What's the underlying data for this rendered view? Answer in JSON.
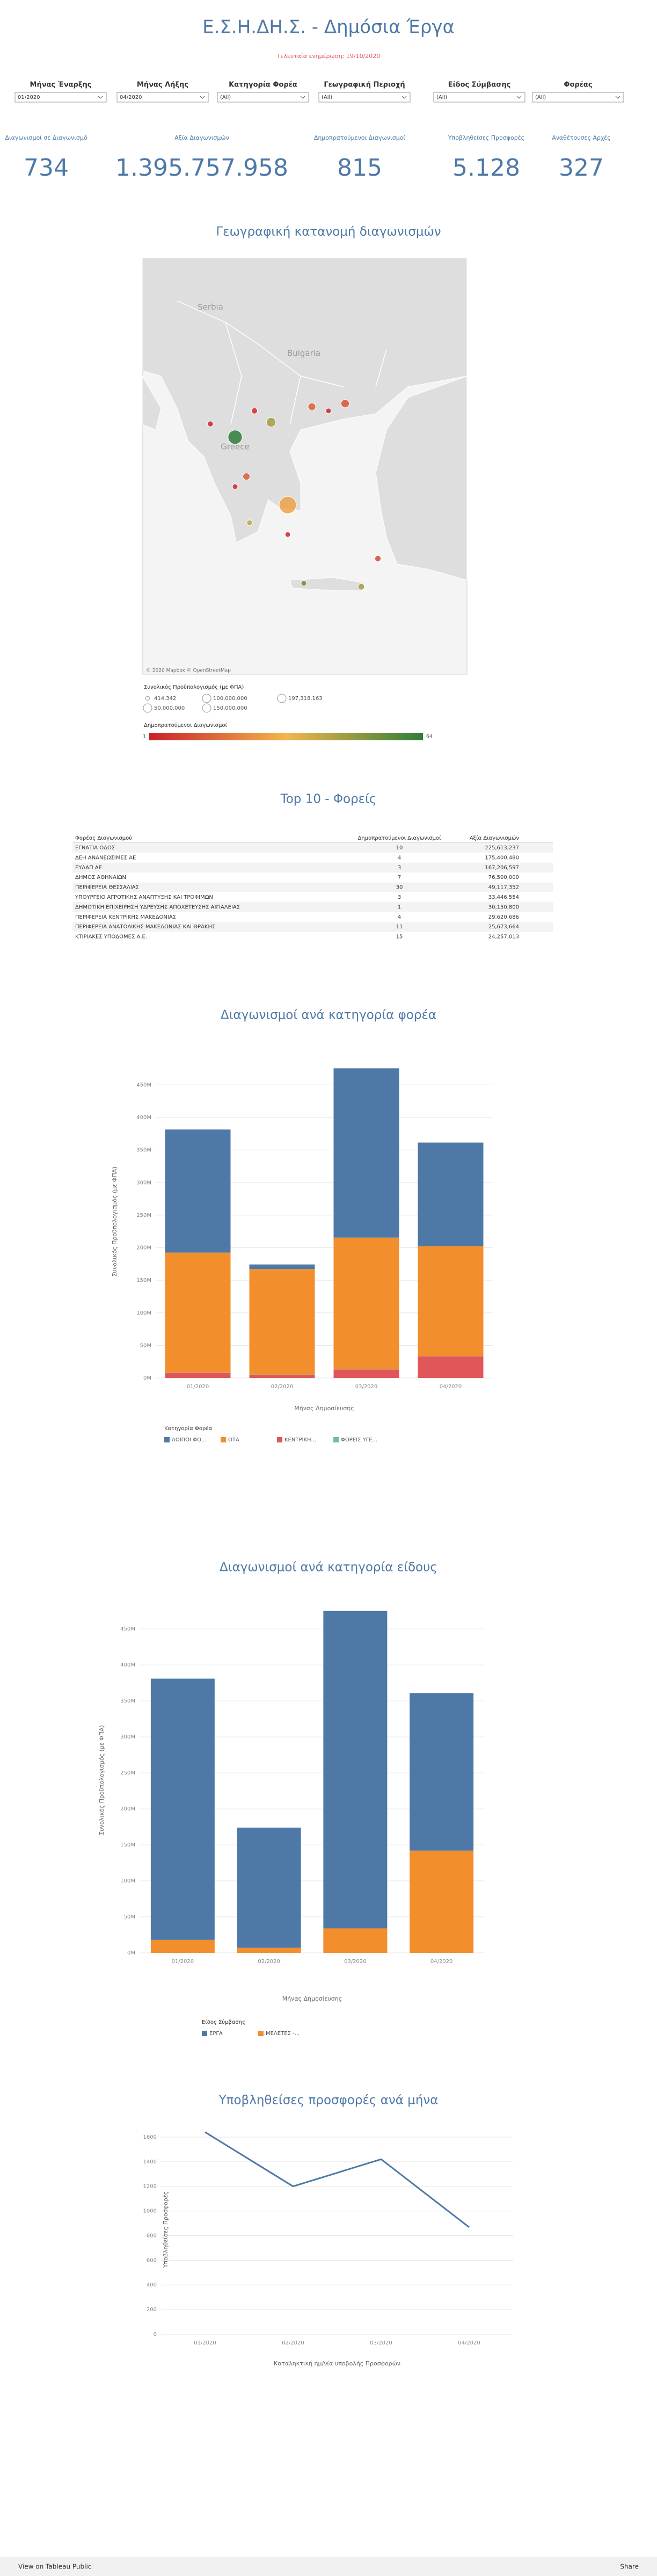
{
  "header": {
    "title": "Ε.Σ.Η.ΔΗ.Σ. - Δημόσια Έργα",
    "subtitle": "Τελευταία ενημέρωση: 19/10/2020"
  },
  "filters": [
    {
      "label": "Μήνας Έναρξης",
      "value": "01/2020"
    },
    {
      "label": "Μήνας Λήξης",
      "value": "04/2020"
    },
    {
      "label": "Κατηγορία Φορέα",
      "value": "(All)"
    },
    {
      "label": "Γεωγραφική Περιοχή",
      "value": "(All)"
    },
    {
      "label": "Είδος Σύμβασης",
      "value": "(All)"
    },
    {
      "label": "Φορέας",
      "value": "(All)"
    }
  ],
  "kpis": [
    {
      "label": "Διαγωνισμοί σε Διαγωνισμό",
      "value": "734"
    },
    {
      "label": "Αξία Διαγωνισμών",
      "value": "1.395.757.958"
    },
    {
      "label": "Δημοπρατούμενοι Διαγωνισμοί",
      "value": "815"
    },
    {
      "label": "Υποβληθείσες Προσφορές",
      "value": "5.128"
    },
    {
      "label": "Αναθέτουσες Αρχές",
      "value": "327"
    }
  ],
  "table": {
    "title": "Top 10 - Φορείς",
    "columns": [
      "Φορέας Διαγωνισμού",
      "Δημοπρατούμενοι Διαγωνισμοί",
      "Αξία Διαγωνισμών"
    ],
    "rows": [
      [
        "ΕΓΝΑΤΙΑ ΟΔΟΣ",
        "10",
        "225,613,237"
      ],
      [
        "ΔΕΗ ΑΝΑΝΕΩΣΙΜΕΣ ΑΕ",
        "4",
        "175,400,480"
      ],
      [
        "ΕΥΔΑΠ ΑΕ",
        "3",
        "167,206,597"
      ],
      [
        "ΔΗΜΟΣ ΑΘΗΝΑΙΩΝ",
        "7",
        "76,500,000"
      ],
      [
        "ΠΕΡΙΦΕΡΕΙΑ ΘΕΣΣΑΛΙΑΣ",
        "30",
        "49,117,352"
      ],
      [
        "ΥΠΟΥΡΓΕΙΟ ΑΓΡΟΤΙΚΗΣ ΑΝΑΠΤΥΞΗΣ ΚΑΙ ΤΡΟΦΙΜΩΝ",
        "3",
        "33,446,554"
      ],
      [
        "ΔΗΜΟΤΙΚΗ ΕΠΙΧΕΙΡΗΣΗ ΥΔΡΕΥΣΗΣ ΑΠΟΧΕΤΕΥΣΗΣ ΑΙΓΙΑΛΕΙΑΣ",
        "1",
        "30,150,800"
      ],
      [
        "ΠΕΡΙΦΕΡΕΙΑ ΚΕΝΤΡΙΚΗΣ ΜΑΚΕΔΟΝΙΑΣ",
        "4",
        "29,620,686"
      ],
      [
        "ΠΕΡΙΦΕΡΕΙΑ ΑΝΑΤΟΛΙΚΗΣ ΜΑΚΕΔΟΝΙΑΣ ΚΑΙ ΘΡΑΚΗΣ",
        "11",
        "25,673,664"
      ],
      [
        "ΚΤΙΡΙΑΚΕΣ ΥΠΟΔΟΜΕΣ Α.Ε.",
        "15",
        "24,257,013"
      ]
    ]
  },
  "chart_data": [
    {
      "type": "map",
      "title": "Γεωγραφική κατανομή διαγωνισμών",
      "labels": [
        "Serbia",
        "Bulgaria",
        "Greece"
      ],
      "attribution": "© 2020 Mapbox © OpenStreetMap",
      "points": {
        "lon": [
          21.94,
          23.28,
          23.9,
          24.8,
          26.04,
          25.42,
          22.66,
          21.02,
          22.36,
          21.94,
          22.48,
          23.9,
          27.26,
          24.5,
          26.64
        ],
        "lat": [
          40.14,
          40.61,
          38.0,
          41.1,
          41.2,
          40.97,
          40.97,
          40.56,
          38.9,
          38.58,
          37.44,
          37.07,
          36.31,
          35.53,
          35.42
        ],
        "budget": [
          120000000,
          40000000,
          197318163,
          20000000,
          25000000,
          5000000,
          8000000,
          6000000,
          15000000,
          5000000,
          6000000,
          4000000,
          8000000,
          5000000,
          10000000
        ],
        "count": [
          64,
          45,
          28,
          15,
          12,
          3,
          4,
          2,
          14,
          3,
          40,
          2,
          10,
          55,
          45
        ]
      },
      "size_legend": {
        "title": "Συνολικός Προϋπολογισμός (με ΦΠΑ)",
        "values": [
          {
            "value": 414342,
            "label": "414,342"
          },
          {
            "value": 100000000,
            "label": "100,000,000"
          },
          {
            "value": 197318163,
            "label": "197,318,163"
          },
          {
            "value": 50000000,
            "label": "50,000,000"
          },
          {
            "value": 150000000,
            "label": "150,000,000"
          }
        ]
      },
      "color_legend": {
        "title": "Δημοπρατούμενοι Διαγωνισμοί",
        "range": [
          1,
          64
        ],
        "colors": [
          "#c8202a",
          "#f3b64a",
          "#2f7d3a"
        ]
      }
    },
    {
      "type": "bar",
      "stacked": true,
      "title": "Διαγωνισμοί ανά κατηγορία φορέα",
      "xlabel": "Μήνας Δημοσίευσης",
      "ylabel": "Συνολικός Προϋπολογισμός (με ΦΠΑ)",
      "categories": [
        "01/2020",
        "02/2020",
        "03/2020",
        "04/2020"
      ],
      "legend_title": "Κατηγορία Φορέα",
      "series": [
        {
          "name": "ΚΕΝΤΡΙΚΗ...",
          "color": "#e15759",
          "values": [
            8,
            5,
            13,
            33
          ]
        },
        {
          "name": "ΦΟΡΕΙΣ ΥΓΕ...",
          "color": "#76b7b2",
          "values": [
            0.5,
            0.3,
            0.5,
            0.5
          ]
        },
        {
          "name": "ΟΤΑ",
          "color": "#f28e2b",
          "values": [
            184,
            162,
            202,
            169
          ]
        },
        {
          "name": "ΛΟΙΠΟΙ ΦΟ...",
          "color": "#4e79a7",
          "values": [
            189,
            7,
            260,
            159
          ]
        }
      ],
      "legend_order": [
        3,
        2,
        0,
        1
      ],
      "ylim": [
        0,
        480
      ],
      "yticks": [
        {
          "value": 0,
          "label": "0M"
        },
        {
          "value": 50,
          "label": "50M"
        },
        {
          "value": 100,
          "label": "100M"
        },
        {
          "value": 150,
          "label": "150M"
        },
        {
          "value": 200,
          "label": "200M"
        },
        {
          "value": 250,
          "label": "250M"
        },
        {
          "value": 300,
          "label": "300M"
        },
        {
          "value": 350,
          "label": "350M"
        },
        {
          "value": 400,
          "label": "400M"
        },
        {
          "value": 450,
          "label": "450M"
        }
      ],
      "grid": true
    },
    {
      "type": "bar",
      "stacked": true,
      "title": "Διαγωνισμοί ανά κατηγορία είδους",
      "xlabel": "Μήνας Δημοσίευσης",
      "ylabel": "Συνολικός Προϋπολογισμός (με ΦΠΑ)",
      "categories": [
        "01/2020",
        "02/2020",
        "03/2020",
        "04/2020"
      ],
      "legend_title": "Είδος Σύμβασης",
      "series": [
        {
          "name": "ΜΕΛΕΤΕΣ -...",
          "color": "#f28e2b",
          "values": [
            18,
            7,
            34,
            142
          ]
        },
        {
          "name": "ΕΡΓΑ",
          "color": "#4e79a7",
          "values": [
            363,
            167,
            441,
            219
          ]
        }
      ],
      "legend_order": [
        1,
        0
      ],
      "ylim": [
        0,
        480
      ],
      "yticks": [
        {
          "value": 0,
          "label": "0M"
        },
        {
          "value": 50,
          "label": "50M"
        },
        {
          "value": 100,
          "label": "100M"
        },
        {
          "value": 150,
          "label": "150M"
        },
        {
          "value": 200,
          "label": "200M"
        },
        {
          "value": 250,
          "label": "250M"
        },
        {
          "value": 300,
          "label": "300M"
        },
        {
          "value": 350,
          "label": "350M"
        },
        {
          "value": 400,
          "label": "400M"
        },
        {
          "value": 450,
          "label": "450M"
        }
      ],
      "grid": true
    },
    {
      "type": "line",
      "title": "Υποβληθείσες προσφορές ανά μήνα",
      "xlabel": "Καταληκτική ημ/νία υποβολής Προσφορών",
      "ylabel": "Υποβληθείσες Προσφορές",
      "categories": [
        "01/2020",
        "02/2020",
        "03/2020",
        "04/2020"
      ],
      "values": [
        1640,
        1200,
        1420,
        868
      ],
      "color": "#4e79a7",
      "ylim": [
        0,
        1700
      ],
      "yticks": [
        0,
        200,
        400,
        600,
        800,
        1000,
        1200,
        1400,
        1600
      ],
      "grid": true
    }
  ],
  "footer": {
    "link": "View on Tableau Public",
    "share": "Share"
  }
}
